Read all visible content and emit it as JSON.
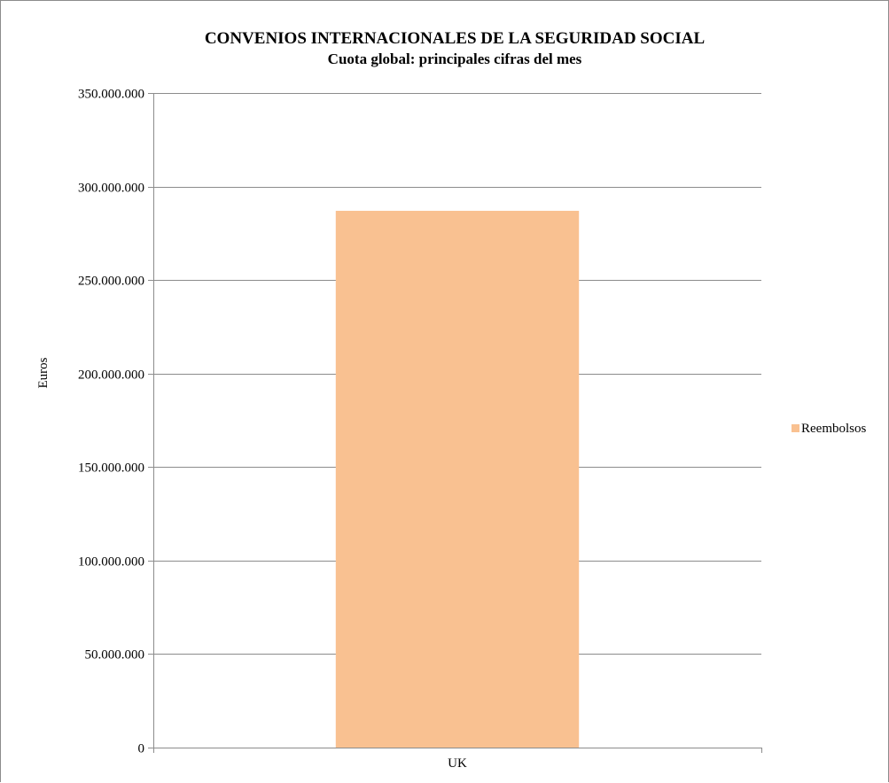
{
  "chart_data": {
    "type": "bar",
    "title": "CONVENIOS INTERNACIONALES DE LA SEGURIDAD SOCIAL",
    "subtitle": "Cuota global: principales cifras del mes",
    "categories": [
      "UK"
    ],
    "series": [
      {
        "name": "Reembolsos",
        "values": [
          287000000
        ],
        "color": "#f9c191"
      }
    ],
    "ylabel": "Euros",
    "xlabel": "",
    "ylim": [
      0,
      350000000
    ],
    "yticks": [
      0,
      50000000,
      100000000,
      150000000,
      200000000,
      250000000,
      300000000,
      350000000
    ],
    "ytick_labels": [
      "0",
      "50.000.000",
      "100.000.000",
      "150.000.000",
      "200.000.000",
      "250.000.000",
      "300.000.000",
      "350.000.000"
    ],
    "grid": true,
    "legend_position": "right"
  }
}
